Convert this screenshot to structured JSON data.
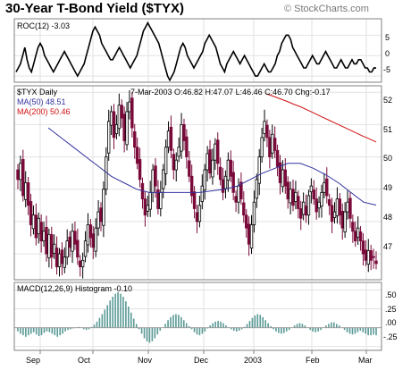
{
  "header": {
    "title": "30-Year T-Bond Yield ($TYX)",
    "brand": "© StockCharts.com"
  },
  "roc_panel": {
    "label": "ROC(12) -3.03",
    "ticks": [
      "5",
      "0",
      "-5"
    ]
  },
  "price_panel": {
    "label": "$TYX Daily",
    "ohlc": "7-Mar-2003 O:46.82 H:47.07 L:46.46 C:46.70 Chg:-0.17",
    "ma50_label": "MA(50) 48.51",
    "ma200_label": "MA(200) 50.46",
    "ticks": [
      "52",
      "51",
      "50",
      "49",
      "48",
      "47"
    ]
  },
  "macd_panel": {
    "label": "MACD(12,26,9) Histogram -0.10",
    "ticks": [
      ".50",
      ".25",
      ".00",
      "-.25"
    ]
  },
  "x_axis": {
    "labels": [
      "Sep",
      "Oct",
      "Nov",
      "Dec",
      "2003",
      "Feb",
      "Mar"
    ]
  },
  "colors": {
    "up_candle": "#000000",
    "down_candle": "#7a0a3a",
    "ma50": "#3232a0",
    "ma200": "#d01010",
    "roc_line": "#000000",
    "histogram": "#5a9a96",
    "grid": "#e2e2e2",
    "panel_border": "#808080"
  },
  "chart_data": [
    {
      "type": "line",
      "title": "ROC(12) -3.03",
      "x_labels": [
        "Sep",
        "Oct",
        "Nov",
        "Dec",
        "2003",
        "Feb",
        "Mar"
      ],
      "ylim": [
        -6.5,
        9
      ],
      "y_ticks": [
        5,
        0,
        -5
      ],
      "series": [
        {
          "name": "ROC(12)",
          "values": [
            -4,
            -3,
            -2,
            0,
            2,
            -1,
            -3,
            -4,
            -2,
            0,
            2,
            3,
            2,
            0,
            -1,
            -2,
            -3,
            -4,
            -3,
            -2,
            -1,
            0,
            1,
            0,
            -1,
            -2,
            -3,
            -4,
            -5,
            -4,
            -3,
            -2,
            0,
            2,
            4,
            6,
            7,
            6,
            5,
            3,
            2,
            1,
            0,
            -1,
            -1,
            0,
            1,
            2,
            1,
            0,
            -1,
            -2,
            -3,
            -2,
            -1,
            0,
            2,
            4,
            6,
            7,
            8,
            7,
            6,
            5,
            4,
            3,
            1,
            -1,
            -3,
            -5,
            -6,
            -5,
            -4,
            -2,
            0,
            2,
            3,
            2,
            0,
            -1,
            -2,
            -3,
            -2,
            -1,
            0,
            1,
            3,
            4,
            5,
            4,
            3,
            2,
            0,
            -2,
            -3,
            -4,
            -2,
            -1,
            0,
            1,
            0,
            -1,
            -2,
            -1,
            0,
            -1,
            -2,
            -3,
            -4,
            -5,
            -5,
            -4,
            -3,
            -2,
            -3,
            -4,
            -4,
            -3,
            -2,
            0,
            1,
            3,
            4,
            5,
            5,
            4,
            2,
            1,
            0,
            -1,
            -2,
            -3,
            -3,
            -2,
            -1,
            0,
            -1,
            -2,
            -2,
            -1,
            0,
            1,
            0,
            -1,
            -2,
            -3,
            -3,
            -2,
            -1,
            -2,
            -3,
            -3,
            -2,
            -1,
            -2,
            -2,
            -1,
            -1,
            -2,
            -3,
            -3,
            -4,
            -4,
            -3,
            -3.03
          ]
        }
      ]
    },
    {
      "type": "line",
      "title": "$TYX Daily",
      "subtitle": "7-Mar-2003 O:46.82 H:47.07 L:46.46 C:46.70 Chg:-0.17",
      "x_labels": [
        "Sep",
        "Oct",
        "Nov",
        "Dec",
        "2003",
        "Feb",
        "Mar"
      ],
      "ylim": [
        46.2,
        52.2
      ],
      "y_ticks": [
        52,
        51,
        50,
        49,
        48,
        47
      ],
      "close": [
        49.3,
        49.8,
        48.8,
        49.2,
        48.5,
        47.9,
        48.2,
        47.5,
        48.1,
        47.4,
        47.7,
        47.0,
        47.6,
        46.9,
        47.3,
        46.6,
        47.0,
        46.7,
        46.9,
        47.4,
        47.2,
        47.7,
        47.3,
        46.9,
        46.6,
        46.8,
        47.4,
        47.9,
        47.5,
        47.2,
        47.8,
        48.3,
        48.0,
        49.0,
        50.0,
        51.1,
        51.4,
        50.6,
        51.0,
        51.6,
        51.2,
        50.5,
        51.4,
        51.7,
        50.9,
        50.3,
        49.8,
        49.3,
        48.7,
        48.2,
        48.5,
        48.9,
        49.6,
        49.1,
        48.4,
        48.9,
        49.6,
        50.3,
        50.8,
        50.2,
        49.6,
        49.9,
        50.3,
        51.0,
        50.5,
        50.0,
        49.4,
        48.8,
        48.4,
        48.0,
        48.5,
        49.1,
        49.6,
        50.1,
        49.5,
        49.9,
        50.4,
        49.8,
        49.3,
        48.9,
        49.4,
        49.9,
        49.4,
        48.9,
        48.6,
        49.1,
        48.7,
        48.2,
        47.8,
        47.3,
        47.9,
        48.6,
        49.3,
        50.0,
        50.6,
        51.1,
        50.6,
        50.0,
        50.7,
        50.2,
        49.7,
        49.2,
        49.6,
        49.1,
        48.7,
        49.0,
        48.5,
        48.9,
        48.4,
        48.1,
        48.6,
        48.2,
        48.8,
        49.1,
        48.7,
        48.3,
        48.6,
        48.9,
        49.2,
        48.8,
        48.5,
        48.0,
        48.3,
        48.7,
        48.2,
        47.8,
        48.3,
        48.6,
        48.1,
        47.7,
        47.4,
        47.8,
        47.4,
        47.0,
        46.8,
        47.1,
        46.8,
        46.9,
        46.7
      ],
      "series": [
        {
          "name": "MA(50) 48.51",
          "values": [
            50.9,
            50.6,
            50.3,
            50.0,
            49.7,
            49.4,
            49.2,
            49.0,
            48.9,
            48.9,
            48.9,
            48.9,
            48.9,
            48.95,
            49.0,
            49.1,
            49.3,
            49.5,
            49.65,
            49.8,
            49.8,
            49.65,
            49.45,
            49.2,
            48.9,
            48.6,
            48.51
          ]
        },
        {
          "name": "MA(200) 50.46",
          "values": [
            51.95,
            51.88,
            51.8,
            51.72,
            51.63,
            51.55,
            51.45,
            51.35,
            51.25,
            51.15,
            51.05,
            50.95,
            50.85,
            50.75,
            50.65,
            50.56,
            50.46
          ]
        }
      ]
    },
    {
      "type": "bar",
      "title": "MACD(12,26,9) Histogram -0.10",
      "x_labels": [
        "Sep",
        "Oct",
        "Nov",
        "Dec",
        "2003",
        "Feb",
        "Mar"
      ],
      "ylim": [
        -0.3,
        0.6
      ],
      "y_ticks": [
        0.5,
        0.25,
        0.0,
        -0.25
      ],
      "values": [
        -0.05,
        -0.08,
        -0.1,
        -0.12,
        -0.1,
        -0.08,
        -0.06,
        -0.09,
        -0.11,
        -0.1,
        -0.07,
        -0.05,
        -0.06,
        -0.08,
        -0.1,
        -0.12,
        -0.1,
        -0.08,
        -0.05,
        -0.03,
        -0.02,
        -0.01,
        0.0,
        0.01,
        0.0,
        -0.02,
        -0.03,
        -0.02,
        0.01,
        0.04,
        0.08,
        0.13,
        0.18,
        0.24,
        0.3,
        0.36,
        0.41,
        0.45,
        0.47,
        0.45,
        0.41,
        0.35,
        0.28,
        0.2,
        0.12,
        0.05,
        -0.02,
        -0.08,
        -0.14,
        -0.18,
        -0.2,
        -0.18,
        -0.14,
        -0.09,
        -0.04,
        0.0,
        0.05,
        0.1,
        0.14,
        0.17,
        0.18,
        0.17,
        0.14,
        0.1,
        0.06,
        0.02,
        -0.02,
        -0.06,
        -0.09,
        -0.1,
        -0.08,
        -0.05,
        -0.01,
        0.03,
        0.06,
        0.08,
        0.09,
        0.08,
        0.06,
        0.03,
        0.0,
        -0.02,
        -0.04,
        -0.05,
        -0.04,
        -0.02,
        0.01,
        0.05,
        0.09,
        0.13,
        0.16,
        0.18,
        0.17,
        0.14,
        0.1,
        0.06,
        0.02,
        -0.02,
        -0.05,
        -0.07,
        -0.08,
        -0.07,
        -0.05,
        -0.03,
        0.0,
        0.03,
        0.05,
        0.06,
        0.05,
        0.03,
        0.0,
        -0.03,
        -0.05,
        -0.06,
        -0.05,
        -0.03,
        0.0,
        0.03,
        0.05,
        0.07,
        0.07,
        0.05,
        0.03,
        0.0,
        -0.03,
        -0.06,
        -0.08,
        -0.09,
        -0.08,
        -0.06,
        -0.04,
        -0.06,
        -0.08,
        -0.1,
        -0.1,
        -0.09,
        -0.1
      ]
    }
  ]
}
